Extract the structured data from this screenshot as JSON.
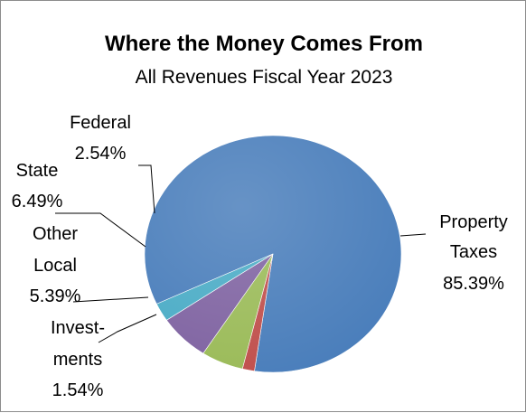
{
  "chart_data": {
    "type": "pie",
    "title": "Where the Money Comes From",
    "subtitle": "All Revenues Fiscal Year 2023",
    "slices": [
      {
        "label_lines": [
          "Property",
          "Taxes",
          "85.39%"
        ],
        "value": 85.39,
        "color": "#4a7ebb"
      },
      {
        "label_lines": [
          "Invest-",
          "ments",
          "1.54%"
        ],
        "value": 1.54,
        "color": "#c0504d"
      },
      {
        "label_lines": [
          "Other",
          "Local",
          "5.39%"
        ],
        "value": 5.39,
        "color": "#9bbb59"
      },
      {
        "label_lines": [
          "State",
          "6.49%"
        ],
        "value": 6.49,
        "color": "#8064a2"
      },
      {
        "label_lines": [
          "Federal",
          "2.54%"
        ],
        "value": 2.54,
        "color": "#4bacc6"
      }
    ]
  }
}
